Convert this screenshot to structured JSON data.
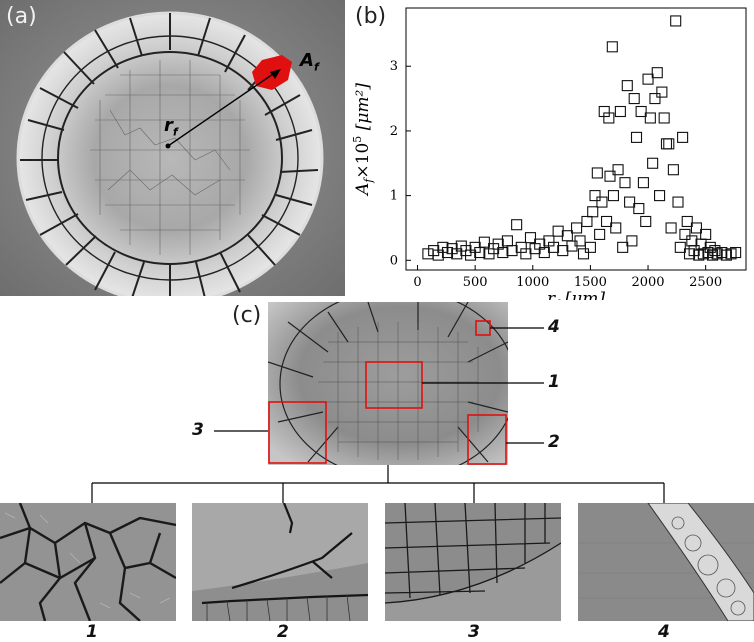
{
  "panel_a": {
    "label": "(a)",
    "r_label": "r",
    "r_sub": "f",
    "a_label": "A",
    "a_sub": "f"
  },
  "panel_b": {
    "label": "(b)"
  },
  "panel_c": {
    "label": "(c)",
    "callouts": [
      "1",
      "2",
      "3",
      "4"
    ],
    "zoom_labels": [
      "1",
      "2",
      "3",
      "4"
    ]
  },
  "colors": {
    "highlight": "#e01010",
    "marker": "#111111"
  },
  "chart_data": {
    "type": "scatter",
    "xlabel_main": "r",
    "xlabel_sub": "f",
    "xlabel_unit": "[μm]",
    "ylabel_main": "A",
    "ylabel_sub": "f",
    "ylabel_mid": "×10",
    "ylabel_sup": "5",
    "ylabel_unit": "[μm²]",
    "xlim": [
      -100,
      2850
    ],
    "ylim": [
      -0.15,
      3.9
    ],
    "xticks": [
      0,
      500,
      1000,
      1500,
      2000,
      2500
    ],
    "yticks": [
      0,
      1,
      2,
      3
    ],
    "marker": "open-square",
    "points": [
      [
        90,
        0.1
      ],
      [
        140,
        0.15
      ],
      [
        180,
        0.08
      ],
      [
        220,
        0.2
      ],
      [
        260,
        0.12
      ],
      [
        300,
        0.18
      ],
      [
        340,
        0.1
      ],
      [
        380,
        0.22
      ],
      [
        420,
        0.15
      ],
      [
        460,
        0.08
      ],
      [
        500,
        0.2
      ],
      [
        540,
        0.12
      ],
      [
        580,
        0.28
      ],
      [
        620,
        0.1
      ],
      [
        660,
        0.18
      ],
      [
        700,
        0.25
      ],
      [
        740,
        0.12
      ],
      [
        780,
        0.3
      ],
      [
        820,
        0.15
      ],
      [
        860,
        0.55
      ],
      [
        900,
        0.2
      ],
      [
        940,
        0.1
      ],
      [
        980,
        0.35
      ],
      [
        1020,
        0.18
      ],
      [
        1060,
        0.25
      ],
      [
        1100,
        0.12
      ],
      [
        1140,
        0.3
      ],
      [
        1180,
        0.2
      ],
      [
        1220,
        0.45
      ],
      [
        1260,
        0.15
      ],
      [
        1300,
        0.38
      ],
      [
        1340,
        0.22
      ],
      [
        1380,
        0.5
      ],
      [
        1410,
        0.3
      ],
      [
        1440,
        0.1
      ],
      [
        1470,
        0.6
      ],
      [
        1500,
        0.2
      ],
      [
        1520,
        0.75
      ],
      [
        1540,
        1.0
      ],
      [
        1560,
        1.35
      ],
      [
        1580,
        0.4
      ],
      [
        1600,
        0.9
      ],
      [
        1620,
        2.3
      ],
      [
        1640,
        0.6
      ],
      [
        1660,
        2.2
      ],
      [
        1670,
        1.3
      ],
      [
        1690,
        3.3
      ],
      [
        1700,
        1.0
      ],
      [
        1720,
        0.5
      ],
      [
        1740,
        1.4
      ],
      [
        1760,
        2.3
      ],
      [
        1780,
        0.2
      ],
      [
        1800,
        1.2
      ],
      [
        1820,
        2.7
      ],
      [
        1840,
        0.9
      ],
      [
        1860,
        0.3
      ],
      [
        1880,
        2.5
      ],
      [
        1900,
        1.9
      ],
      [
        1920,
        0.8
      ],
      [
        1940,
        2.3
      ],
      [
        1960,
        1.2
      ],
      [
        1980,
        0.6
      ],
      [
        2000,
        2.8
      ],
      [
        2020,
        2.2
      ],
      [
        2040,
        1.5
      ],
      [
        2060,
        2.5
      ],
      [
        2080,
        2.9
      ],
      [
        2100,
        1.0
      ],
      [
        2120,
        2.6
      ],
      [
        2140,
        2.2
      ],
      [
        2160,
        1.8
      ],
      [
        2180,
        1.8
      ],
      [
        2200,
        0.5
      ],
      [
        2220,
        1.4
      ],
      [
        2240,
        3.7
      ],
      [
        2260,
        0.9
      ],
      [
        2280,
        0.2
      ],
      [
        2300,
        1.9
      ],
      [
        2320,
        0.4
      ],
      [
        2340,
        0.6
      ],
      [
        2360,
        0.1
      ],
      [
        2380,
        0.3
      ],
      [
        2400,
        0.15
      ],
      [
        2420,
        0.5
      ],
      [
        2440,
        0.08
      ],
      [
        2460,
        0.25
      ],
      [
        2480,
        0.1
      ],
      [
        2500,
        0.4
      ],
      [
        2520,
        0.12
      ],
      [
        2540,
        0.2
      ],
      [
        2560,
        0.08
      ],
      [
        2580,
        0.15
      ],
      [
        2600,
        0.1
      ],
      [
        2640,
        0.12
      ],
      [
        2680,
        0.08
      ],
      [
        2720,
        0.1
      ],
      [
        2760,
        0.12
      ]
    ]
  }
}
